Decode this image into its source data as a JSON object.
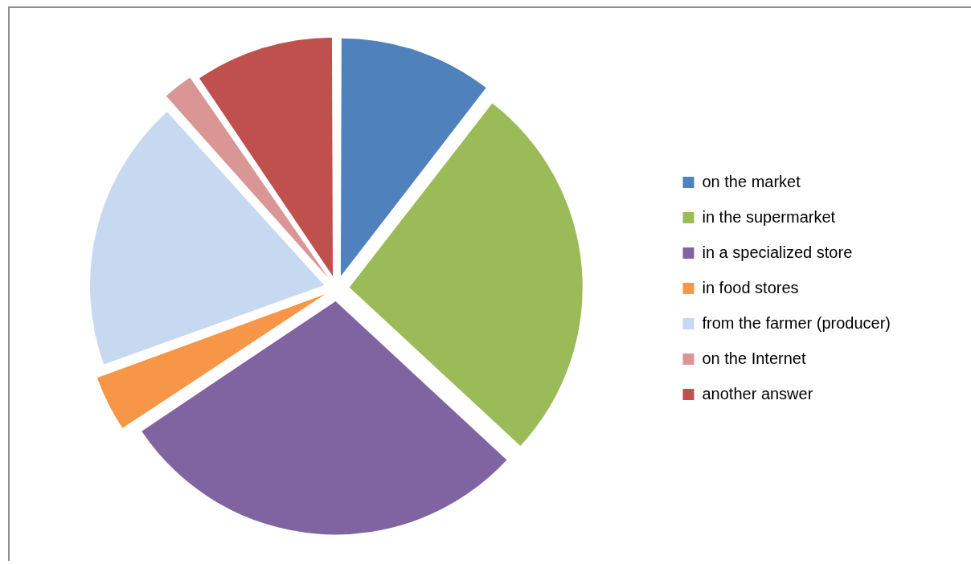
{
  "chart_data": {
    "type": "pie",
    "categories": [
      "on the market",
      "in the supermarket",
      "in a specialized store",
      "in food stores",
      "from the farmer (producer)",
      "on the Internet",
      "another answer"
    ],
    "values": [
      10.5,
      26.4,
      28.7,
      3.9,
      18.8,
      2.2,
      9.5
    ],
    "colors": [
      "#4f81bd",
      "#9bbb59",
      "#8064a2",
      "#f79646",
      "#c6d9f1",
      "#d99694",
      "#c0504d"
    ],
    "legend": "right"
  }
}
